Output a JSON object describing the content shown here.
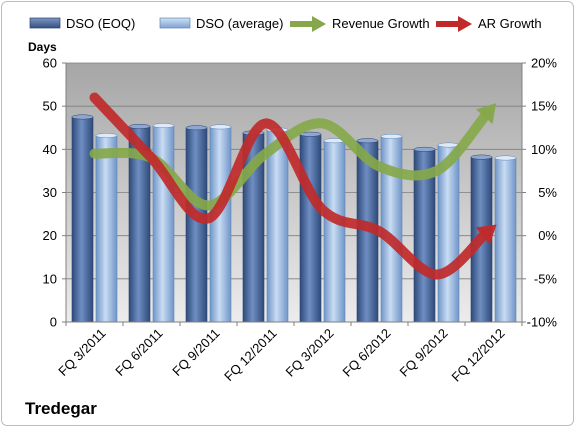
{
  "chart_data": {
    "type": "bar",
    "title": "",
    "footer_label": "Tredegar",
    "ylabel_left": "Days",
    "categories": [
      "FQ 3/2011",
      "FQ 6/2011",
      "FQ 9/2011",
      "FQ 12/2011",
      "FQ 3/2012",
      "FQ 6/2012",
      "FQ 9/2012",
      "FQ 12/2012"
    ],
    "y_left": {
      "min": 0,
      "max": 60,
      "ticks": [
        "0",
        "10",
        "20",
        "30",
        "40",
        "50",
        "60"
      ]
    },
    "y_right": {
      "min": -10,
      "max": 20,
      "ticks": [
        "-10%",
        "-5%",
        "0%",
        "5%",
        "10%",
        "15%",
        "20%"
      ]
    },
    "bar_series": [
      {
        "name": "DSO (EOQ)",
        "axis": "left",
        "color": "#4f6fa3",
        "values": [
          47.5,
          45.3,
          45.0,
          43.8,
          43.5,
          42.0,
          40.0,
          38.2
        ]
      },
      {
        "name": "DSO (average)",
        "axis": "left",
        "color": "#9dbfe6",
        "values": [
          43.2,
          45.5,
          45.2,
          44.5,
          42.0,
          43.0,
          41.0,
          38.0
        ]
      }
    ],
    "line_series": [
      {
        "name": "Revenue Growth",
        "axis": "right",
        "color": "#86a84a",
        "values": [
          9.5,
          9.0,
          3.5,
          9.5,
          13.0,
          8.0,
          7.5,
          15.0
        ]
      },
      {
        "name": "AR Growth",
        "axis": "right",
        "color": "#c02a2a",
        "values": [
          16.0,
          9.0,
          2.0,
          13.0,
          3.0,
          0.5,
          -4.5,
          1.0
        ]
      }
    ],
    "grid": true,
    "legend_position": "top"
  }
}
